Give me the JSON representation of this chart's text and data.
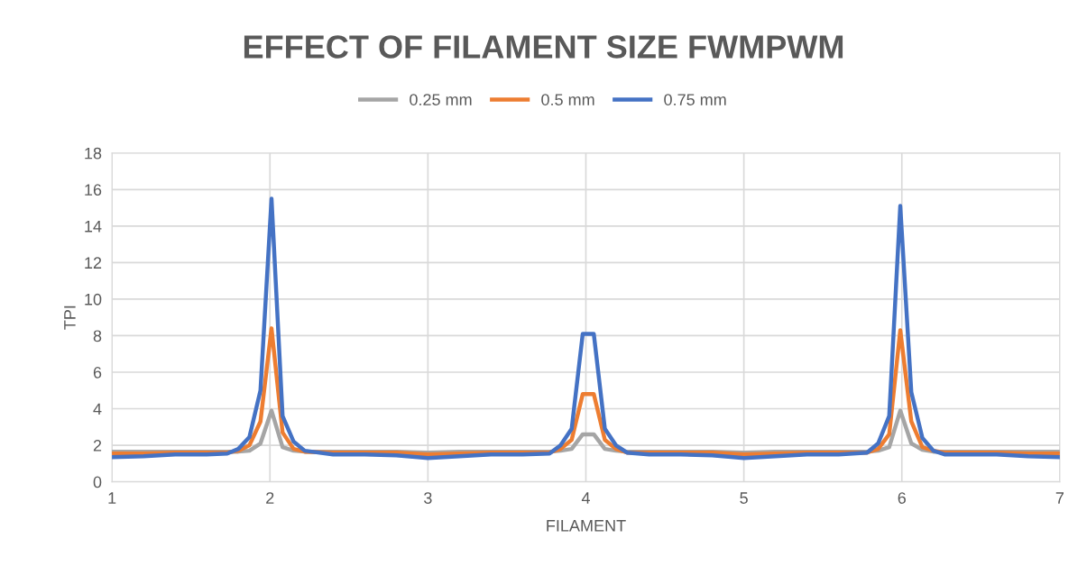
{
  "chart_data": {
    "type": "line",
    "title": "EFFECT OF FILAMENT SIZE FWMPWM",
    "xlabel": "FILAMENT",
    "ylabel": "TPI",
    "x": [
      1,
      1.2,
      1.4,
      1.6,
      1.73,
      1.8,
      1.87,
      1.94,
      2.01,
      2.08,
      2.15,
      2.22,
      2.4,
      2.6,
      2.8,
      3.0,
      3.2,
      3.4,
      3.6,
      3.77,
      3.84,
      3.91,
      3.98,
      4.05,
      4.12,
      4.19,
      4.26,
      4.4,
      4.6,
      4.8,
      5.0,
      5.2,
      5.4,
      5.6,
      5.78,
      5.85,
      5.92,
      5.99,
      6.06,
      6.13,
      6.2,
      6.27,
      6.4,
      6.6,
      6.8,
      7.0
    ],
    "series": [
      {
        "name": "0.25 mm",
        "color": "#a5a5a5",
        "values": [
          1.65,
          1.65,
          1.65,
          1.65,
          1.65,
          1.65,
          1.7,
          2.1,
          3.9,
          1.9,
          1.7,
          1.65,
          1.65,
          1.65,
          1.65,
          1.6,
          1.65,
          1.65,
          1.65,
          1.65,
          1.7,
          1.8,
          2.6,
          2.6,
          1.8,
          1.7,
          1.65,
          1.65,
          1.65,
          1.65,
          1.6,
          1.65,
          1.65,
          1.65,
          1.65,
          1.7,
          1.9,
          3.9,
          2.1,
          1.75,
          1.65,
          1.65,
          1.65,
          1.65,
          1.65,
          1.65
        ]
      },
      {
        "name": "0.5 mm",
        "color": "#ed7d31",
        "values": [
          1.55,
          1.55,
          1.6,
          1.6,
          1.6,
          1.7,
          2.0,
          3.3,
          8.4,
          2.7,
          1.8,
          1.65,
          1.6,
          1.6,
          1.6,
          1.5,
          1.55,
          1.6,
          1.6,
          1.6,
          1.8,
          2.3,
          4.8,
          4.8,
          2.3,
          1.8,
          1.6,
          1.6,
          1.6,
          1.6,
          1.5,
          1.55,
          1.6,
          1.6,
          1.6,
          1.8,
          2.6,
          8.3,
          3.3,
          1.9,
          1.7,
          1.6,
          1.6,
          1.6,
          1.55,
          1.55
        ]
      },
      {
        "name": "0.75 mm",
        "color": "#4472c4",
        "values": [
          1.35,
          1.4,
          1.5,
          1.5,
          1.55,
          1.8,
          2.45,
          5.0,
          15.5,
          3.6,
          2.2,
          1.7,
          1.5,
          1.5,
          1.45,
          1.3,
          1.4,
          1.5,
          1.5,
          1.55,
          2.0,
          2.9,
          8.1,
          8.1,
          2.9,
          2.0,
          1.6,
          1.5,
          1.5,
          1.45,
          1.3,
          1.4,
          1.5,
          1.5,
          1.6,
          2.1,
          3.6,
          15.1,
          4.9,
          2.4,
          1.7,
          1.5,
          1.5,
          1.5,
          1.4,
          1.35
        ]
      }
    ],
    "xlim": [
      1,
      7
    ],
    "xticks": [
      1,
      2,
      3,
      4,
      5,
      6,
      7
    ],
    "ylim": [
      0,
      18
    ],
    "yticks": [
      0,
      2,
      4,
      6,
      8,
      10,
      12,
      14,
      16,
      18
    ],
    "grid": true,
    "legend": "top",
    "marker": "none",
    "line_style": "solid"
  }
}
